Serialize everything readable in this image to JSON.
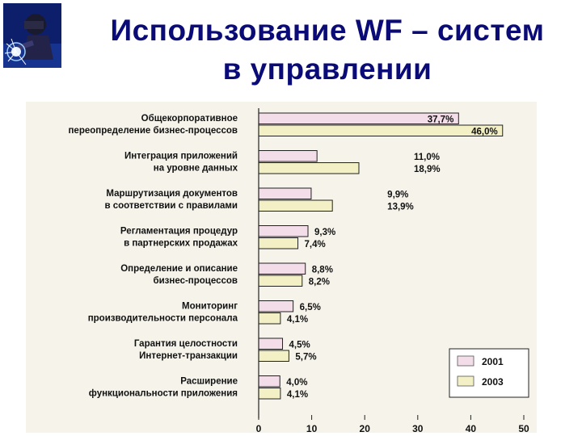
{
  "slide": {
    "title_line1": "Использование WF – систем",
    "title_line2": "в управлении"
  },
  "colors": {
    "title": "#0b0b78",
    "bar_2001": "#f2dde8",
    "bar_2003": "#f2f0c4",
    "bar_edge": "#222222",
    "scan_bg": "#f5f3ea"
  },
  "chart_data": {
    "type": "bar",
    "orientation": "horizontal",
    "categories": [
      [
        "Общекорпоративное",
        "переопределение бизнес-процессов"
      ],
      [
        "Интеграция приложений",
        "на уровне данных"
      ],
      [
        "Маршрутизация документов",
        "в соответствии с правилами"
      ],
      [
        "Регламентация процедур",
        "в партнерских продажах"
      ],
      [
        "Определение и описание",
        "бизнес-процессов"
      ],
      [
        "Мониторинг",
        "производительности персонала"
      ],
      [
        "Гарантия целостности",
        "Интернет-транзакции"
      ],
      [
        "Расширение",
        "функциональности приложения"
      ]
    ],
    "series": [
      {
        "name": "2001",
        "values": [
          37.7,
          11.0,
          9.9,
          9.3,
          8.8,
          6.5,
          4.5,
          4.0
        ],
        "labels": [
          "37,7%",
          "11,0%",
          "9,9%",
          "9,3%",
          "8,8%",
          "6,5%",
          "4,5%",
          "4,0%"
        ]
      },
      {
        "name": "2003",
        "values": [
          46.0,
          18.9,
          13.9,
          7.4,
          8.2,
          4.1,
          5.7,
          4.1
        ],
        "labels": [
          "46,0%",
          "18,9%",
          "13,9%",
          "7,4%",
          "8,2%",
          "4,1%",
          "5,7%",
          "4,1%"
        ]
      }
    ],
    "xlim": [
      0,
      50
    ],
    "x_ticks": [
      "0",
      "10",
      "20",
      "30",
      "40",
      "50"
    ],
    "legend_position": "bottom-right",
    "grid": false
  }
}
